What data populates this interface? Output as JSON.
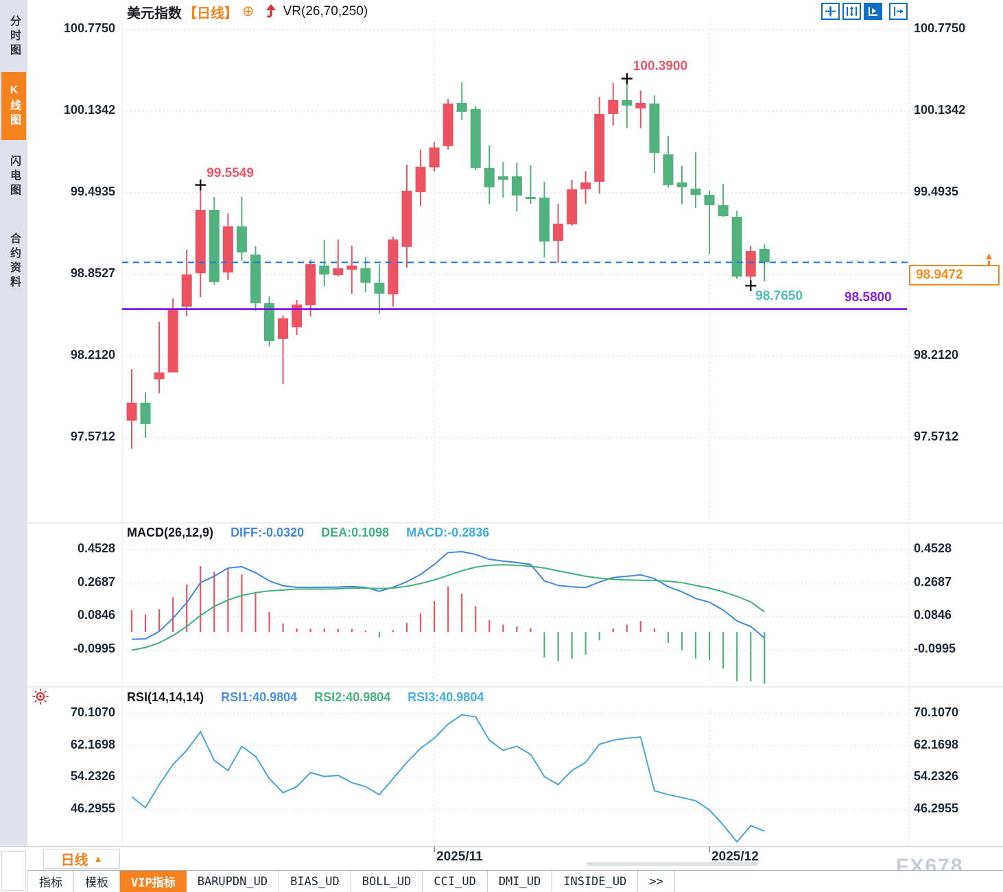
{
  "header": {
    "title": "美元指数",
    "period_badge": "【日线】",
    "add_indicator_glyph": "⊕",
    "overlay_label": "VR(26,70,250)"
  },
  "sidebar": {
    "items": [
      {
        "label": "分时图"
      },
      {
        "label": "K线图"
      },
      {
        "label": "闪电图"
      },
      {
        "label": "合约资料"
      }
    ],
    "active_index": 1
  },
  "toolbar": {
    "icons": [
      "move-crosshair-icon",
      "axis-range-icon",
      "auto-scale-icon",
      "pan-exit-icon"
    ]
  },
  "chart_data": {
    "type": "candlestick",
    "title": "美元指数 日线 K线图 with MACD and RSI",
    "price_axis": {
      "ticks": [
        {
          "value": 100.775,
          "label": "100.7750"
        },
        {
          "value": 100.1342,
          "label": "100.1342"
        },
        {
          "value": 99.4935,
          "label": "99.4935"
        },
        {
          "value": 98.8527,
          "label": "98.8527"
        },
        {
          "value": 98.212,
          "label": "98.2120"
        },
        {
          "value": 97.5712,
          "label": "97.5712"
        }
      ]
    },
    "x_axis": {
      "ticks": [
        {
          "candle_index": 22,
          "label": "2025/11"
        },
        {
          "candle_index": 42,
          "label": "2025/12"
        }
      ]
    },
    "candles": [
      [
        97.706,
        98.11,
        97.485,
        97.846
      ],
      [
        97.846,
        97.926,
        97.571,
        97.679
      ],
      [
        98.03,
        98.48,
        97.92,
        98.084
      ],
      [
        98.084,
        98.665,
        98.084,
        98.585
      ],
      [
        98.6,
        99.047,
        98.524,
        98.852
      ],
      [
        98.862,
        99.555,
        98.675,
        99.359
      ],
      [
        99.359,
        99.461,
        98.773,
        98.794
      ],
      [
        98.868,
        99.332,
        98.81,
        99.23
      ],
      [
        99.23,
        99.461,
        98.961,
        99.026
      ],
      [
        99.009,
        99.074,
        98.568,
        98.627
      ],
      [
        98.627,
        98.68,
        98.287,
        98.33
      ],
      [
        98.347,
        98.53,
        97.99,
        98.508
      ],
      [
        98.438,
        98.653,
        98.379,
        98.616
      ],
      [
        98.611,
        98.966,
        98.524,
        98.933
      ],
      [
        98.922,
        99.122,
        98.756,
        98.852
      ],
      [
        98.847,
        99.127,
        98.836,
        98.901
      ],
      [
        98.89,
        99.079,
        98.702,
        98.922
      ],
      [
        98.901,
        98.987,
        98.713,
        98.788
      ],
      [
        98.788,
        98.933,
        98.546,
        98.702
      ],
      [
        98.697,
        99.149,
        98.6,
        99.127
      ],
      [
        99.069,
        99.714,
        98.906,
        99.51
      ],
      [
        99.499,
        99.833,
        99.391,
        99.698
      ],
      [
        99.693,
        99.892,
        99.661,
        99.849
      ],
      [
        99.86,
        100.232,
        99.833,
        100.194
      ],
      [
        100.199,
        100.36,
        100.064,
        100.129
      ],
      [
        100.151,
        100.172,
        99.671,
        99.688
      ],
      [
        99.688,
        99.865,
        99.407,
        99.537
      ],
      [
        99.623,
        99.736,
        99.456,
        99.596
      ],
      [
        99.623,
        99.731,
        99.348,
        99.472
      ],
      [
        99.461,
        99.709,
        99.407,
        99.445
      ],
      [
        99.456,
        99.58,
        98.987,
        99.111
      ],
      [
        99.116,
        99.407,
        98.944,
        99.251
      ],
      [
        99.246,
        99.596,
        99.235,
        99.521
      ],
      [
        99.521,
        99.661,
        99.407,
        99.575
      ],
      [
        99.58,
        100.247,
        99.488,
        100.113
      ],
      [
        100.113,
        100.355,
        100.021,
        100.221
      ],
      [
        100.221,
        100.39,
        100.0,
        100.178
      ],
      [
        100.156,
        100.296,
        100.0,
        100.199
      ],
      [
        100.194,
        100.258,
        99.65,
        99.806
      ],
      [
        99.795,
        99.94,
        99.537,
        99.553
      ],
      [
        99.575,
        99.704,
        99.407,
        99.537
      ],
      [
        99.526,
        99.811,
        99.375,
        99.477
      ],
      [
        99.477,
        99.51,
        99.014,
        99.396
      ],
      [
        99.396,
        99.564,
        99.305,
        99.31
      ],
      [
        99.305,
        99.353,
        98.815,
        98.836
      ],
      [
        98.836,
        99.079,
        98.765,
        99.036
      ],
      [
        99.052,
        99.09,
        98.8,
        98.947
      ]
    ],
    "annotations": [
      {
        "type": "high",
        "candle_index": 5,
        "value": 99.5549,
        "label": "99.5549",
        "color": "#ef5568"
      },
      {
        "type": "high",
        "candle_index": 36,
        "value": 100.39,
        "label": "100.3900",
        "color": "#ef5568"
      },
      {
        "type": "low",
        "candle_index": 45,
        "value": 98.765,
        "label": "98.7650",
        "color": "#49c2ae"
      }
    ],
    "levels": {
      "last_price": {
        "value": 98.9472,
        "label": "98.9472",
        "line_color": "#1b79e8"
      },
      "support": {
        "value": 98.58,
        "label": "98.5800",
        "line_color": "#7c02e8",
        "text_color": "#8321e6"
      }
    },
    "macd": {
      "title": "MACD(26,12,9)",
      "diff_label": "DIFF:-0.0320",
      "dea_label": "DEA:0.1098",
      "macd_label": "MACD:-0.2836",
      "axis_ticks": [
        {
          "value": 0.4528,
          "label": "0.4528"
        },
        {
          "value": 0.2687,
          "label": "0.2687"
        },
        {
          "value": 0.0846,
          "label": "0.0846"
        },
        {
          "value": -0.0995,
          "label": "-0.0995"
        }
      ],
      "diff": [
        -0.04,
        -0.038,
        0.003,
        0.075,
        0.16,
        0.27,
        0.305,
        0.35,
        0.358,
        0.325,
        0.28,
        0.253,
        0.245,
        0.244,
        0.245,
        0.246,
        0.249,
        0.244,
        0.223,
        0.245,
        0.275,
        0.315,
        0.37,
        0.435,
        0.44,
        0.425,
        0.398,
        0.388,
        0.38,
        0.37,
        0.28,
        0.255,
        0.247,
        0.243,
        0.273,
        0.298,
        0.305,
        0.313,
        0.292,
        0.248,
        0.22,
        0.183,
        0.163,
        0.12,
        0.06,
        0.03,
        -0.032
      ],
      "dea": [
        -0.1,
        -0.085,
        -0.06,
        -0.02,
        0.03,
        0.09,
        0.14,
        0.175,
        0.2,
        0.215,
        0.225,
        0.23,
        0.235,
        0.235,
        0.235,
        0.237,
        0.24,
        0.24,
        0.238,
        0.24,
        0.25,
        0.265,
        0.285,
        0.31,
        0.335,
        0.355,
        0.365,
        0.368,
        0.365,
        0.36,
        0.35,
        0.335,
        0.32,
        0.305,
        0.295,
        0.288,
        0.285,
        0.283,
        0.282,
        0.278,
        0.27,
        0.255,
        0.24,
        0.22,
        0.195,
        0.165,
        0.11
      ],
      "hist": [
        0.12,
        0.095,
        0.125,
        0.19,
        0.26,
        0.36,
        0.33,
        0.35,
        0.315,
        0.22,
        0.11,
        0.046,
        0.02,
        0.017,
        0.019,
        0.017,
        0.017,
        0.008,
        -0.03,
        0.01,
        0.05,
        0.1,
        0.17,
        0.25,
        0.21,
        0.14,
        0.065,
        0.04,
        0.03,
        0.02,
        -0.14,
        -0.16,
        -0.147,
        -0.125,
        -0.045,
        0.02,
        0.04,
        0.06,
        0.02,
        -0.06,
        -0.1,
        -0.145,
        -0.155,
        -0.2,
        -0.27,
        -0.27,
        -0.284
      ]
    },
    "rsi": {
      "title": "RSI(14,14,14)",
      "rsi1_label": "RSI1:40.9804",
      "rsi2_label": "RSI2:40.9804",
      "rsi3_label": "RSI3:40.9804",
      "axis_ticks": [
        {
          "value": 70.107,
          "label": "70.1070"
        },
        {
          "value": 62.1698,
          "label": "62.1698"
        },
        {
          "value": 54.2326,
          "label": "54.2326"
        },
        {
          "value": 46.2955,
          "label": "46.2955"
        }
      ],
      "values": [
        49.5,
        46.8,
        52.5,
        57.5,
        61.0,
        65.6,
        58.5,
        56.0,
        62.0,
        59.5,
        54.0,
        50.5,
        52.0,
        55.5,
        54.5,
        54.8,
        53.0,
        52.0,
        50.0,
        54.0,
        58.0,
        61.5,
        64.0,
        67.5,
        69.8,
        69.3,
        63.5,
        61.0,
        62.0,
        60.0,
        54.5,
        52.5,
        56.0,
        58.0,
        62.5,
        63.5,
        64.0,
        64.3,
        51.0,
        50.0,
        49.3,
        48.5,
        46.2,
        42.5,
        38.3,
        42.3,
        40.98
      ]
    },
    "colors": {
      "up": "#eb5363",
      "down": "#52b27e",
      "diff_line": "#3f87dc",
      "dea_line": "#3faf7d",
      "rsi_line": "#4aa3d9",
      "diff_text": "#3f87dc",
      "dea_text": "#3faf7d",
      "macd_text": "#42aae4",
      "rsi1_text": "#4a90dd",
      "rsi2_text": "#44b27c",
      "rsi3_text": "#45aee0"
    }
  },
  "bottom": {
    "period_label": "日线",
    "period_arrow": "▲",
    "watermark": "FX678"
  },
  "tabs": {
    "items": [
      "指标",
      "模板",
      "VIP指标",
      "BARUPDN_UD",
      "BIAS_UD",
      "BOLL_UD",
      "CCI_UD",
      "DMI_UD",
      "INSIDE_UD",
      ">>"
    ],
    "active_index": 2
  }
}
